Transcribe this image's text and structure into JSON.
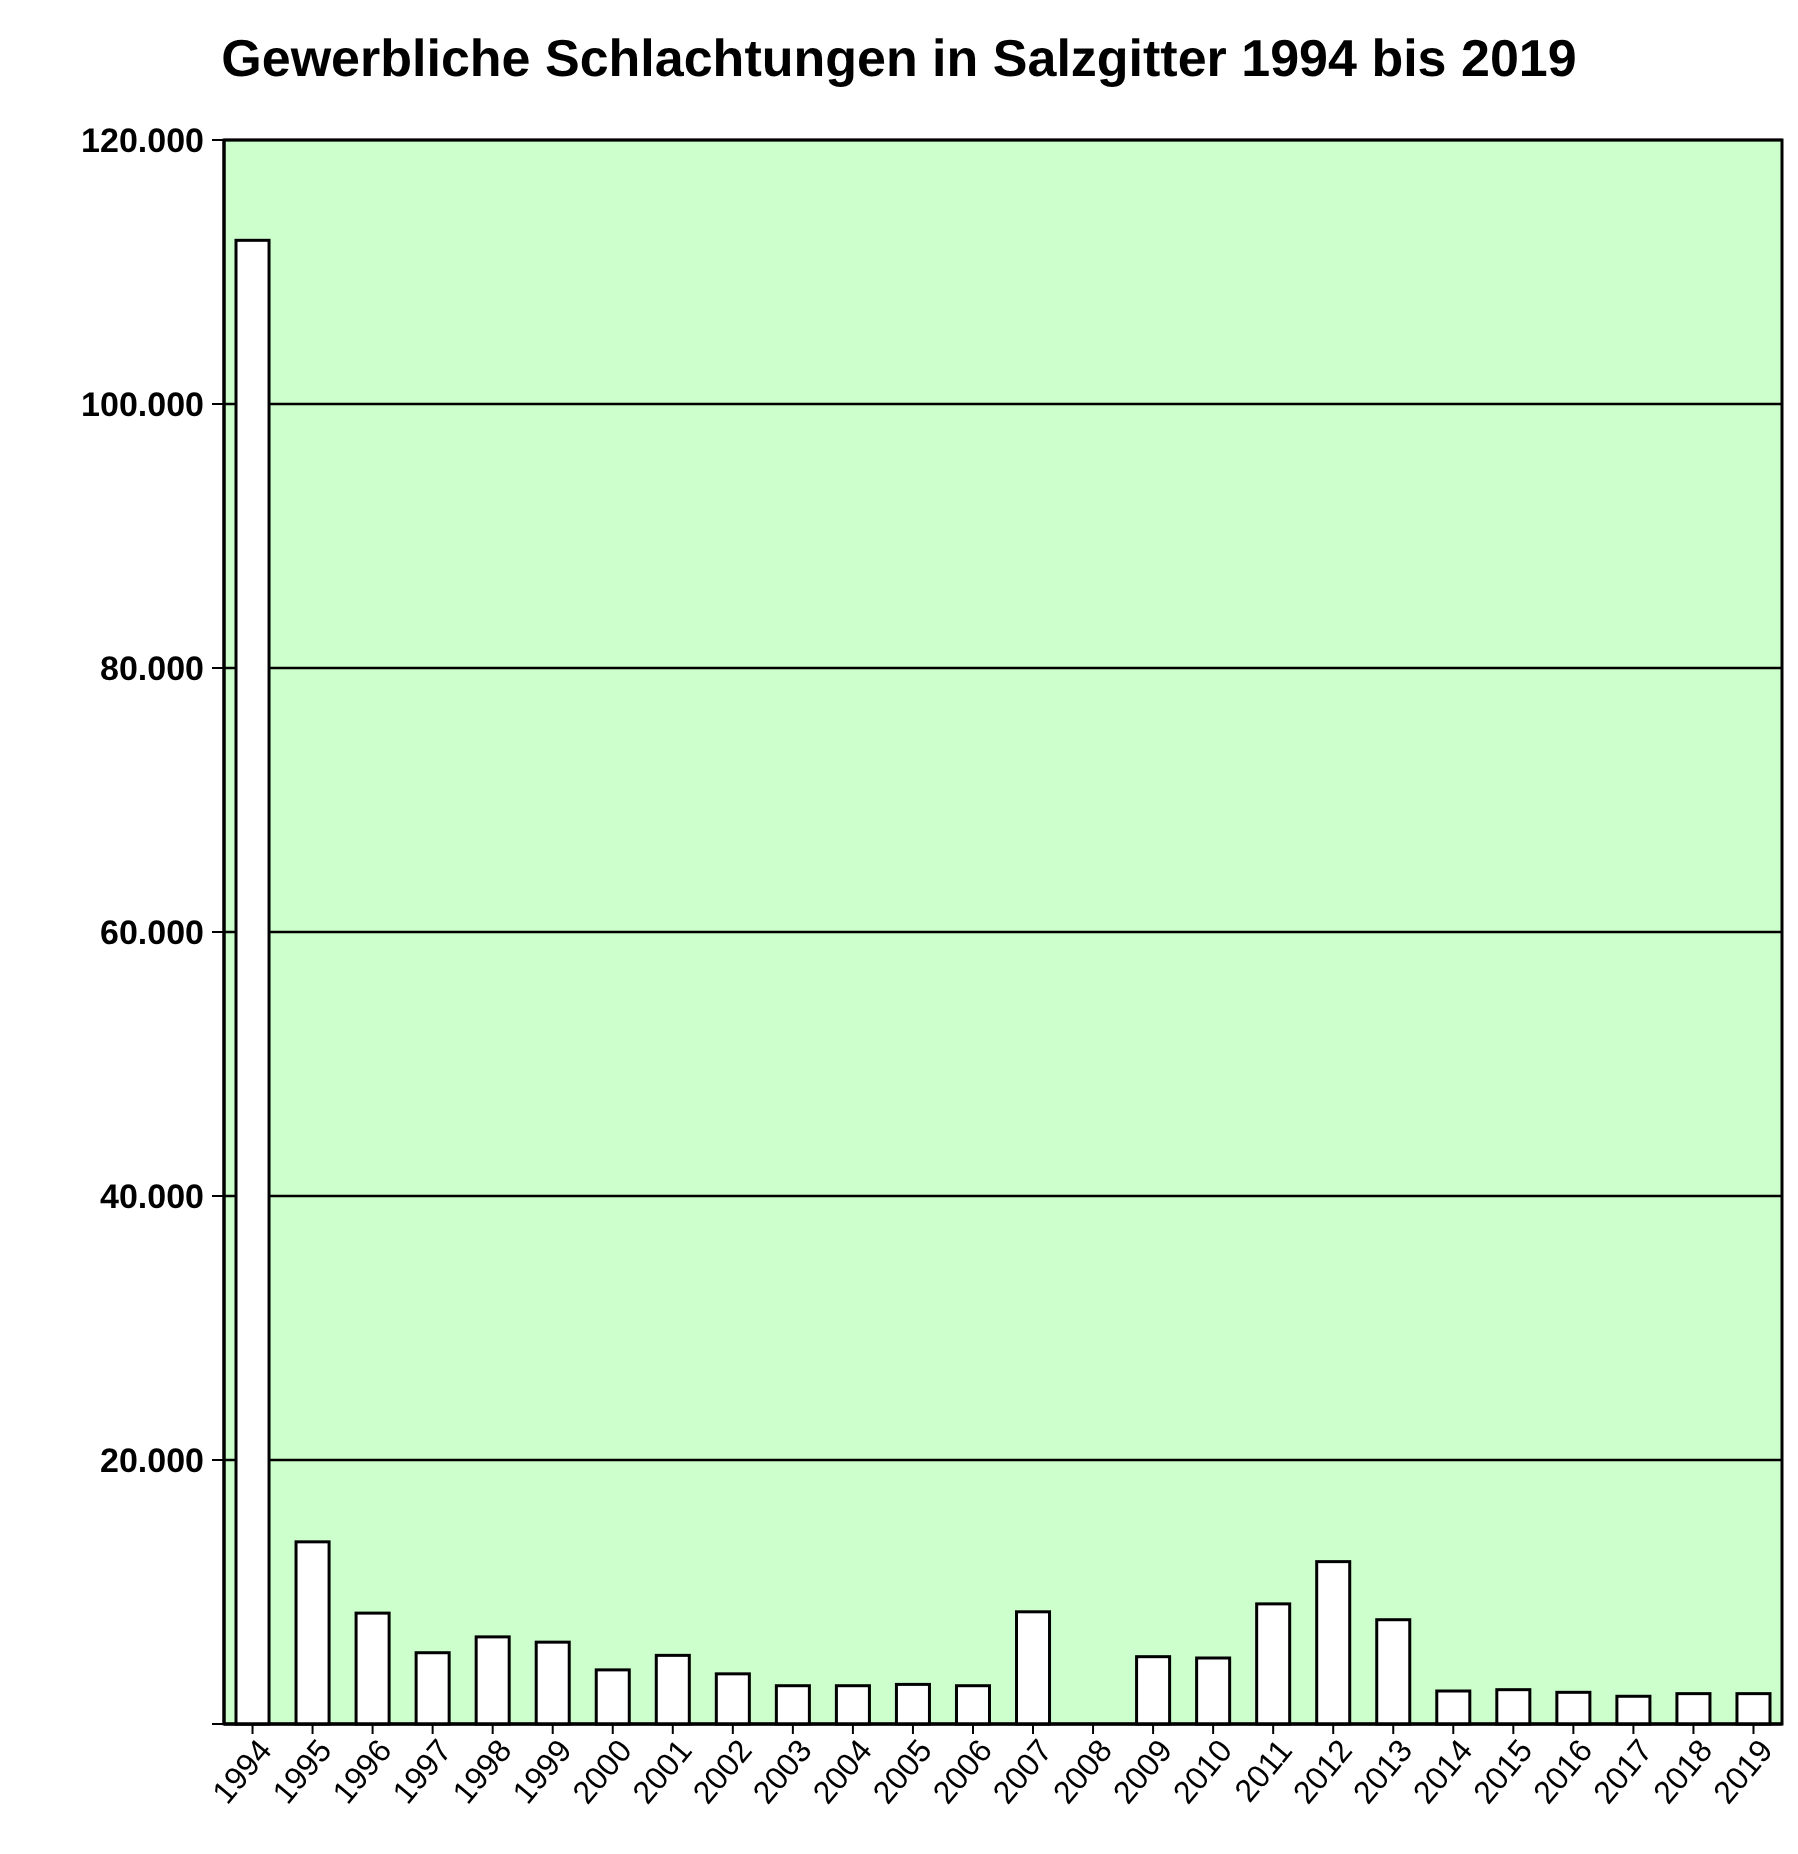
{
  "chart_data": {
    "type": "bar",
    "title": "Gewerbliche Schlachtungen in Salzgitter 1994 bis 2019",
    "categories": [
      "1994",
      "1995",
      "1996",
      "1997",
      "1998",
      "1999",
      "2000",
      "2001",
      "2002",
      "2003",
      "2004",
      "2005",
      "2006",
      "2007",
      "2008",
      "2009",
      "2010",
      "2011",
      "2012",
      "2013",
      "2014",
      "2015",
      "2016",
      "2017",
      "2018",
      "2019"
    ],
    "values": [
      112400,
      13800,
      8400,
      5400,
      6600,
      6200,
      4100,
      5200,
      3800,
      2900,
      2900,
      3000,
      2900,
      8500,
      0,
      5100,
      5000,
      9100,
      12300,
      7900,
      2500,
      2600,
      2400,
      2100,
      2300,
      2300
    ],
    "color": "#ffffff",
    "ylim": [
      0,
      120000
    ],
    "yticks": [
      {
        "value": 0,
        "label": null
      },
      {
        "value": 20000,
        "label": "20.000"
      },
      {
        "value": 40000,
        "label": "40.000"
      },
      {
        "value": 60000,
        "label": "60.000"
      },
      {
        "value": 80000,
        "label": "80.000"
      },
      {
        "value": 100000,
        "label": "100.000"
      },
      {
        "value": 120000,
        "label": "120.000"
      }
    ],
    "grid": "y"
  }
}
